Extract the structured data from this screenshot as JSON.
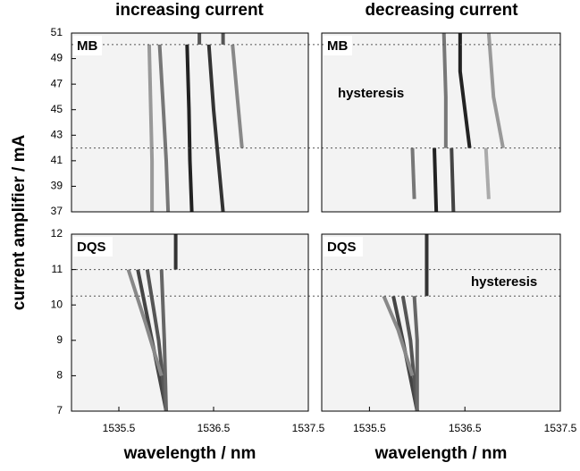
{
  "column_titles": [
    "increasing current",
    "decreasing current"
  ],
  "y_label": "current amplifier / mA",
  "chart_data": [
    {
      "type": "line",
      "label": "MB",
      "ylim": [
        37,
        51
      ],
      "yticks": [
        37,
        39,
        41,
        43,
        45,
        47,
        49,
        51
      ],
      "xlim": [
        1535.0,
        1537.5
      ],
      "hlines": [
        50.1,
        42.0
      ],
      "series": [
        {
          "color": "#222222",
          "x": [
            1536.27,
            1536.25,
            1536.24,
            1536.22
          ],
          "values": [
            37,
            41,
            45,
            50.1
          ]
        },
        {
          "color": "#333333",
          "x": [
            1536.6,
            1536.55,
            1536.5,
            1536.45
          ],
          "values": [
            37,
            41,
            45,
            50.1
          ]
        },
        {
          "color": "#777777",
          "x": [
            1536.02,
            1536.0,
            1535.97,
            1535.93
          ],
          "values": [
            37,
            41,
            45,
            50.1
          ]
        },
        {
          "color": "#999999",
          "x": [
            1535.85,
            1535.85,
            1535.82
          ],
          "values": [
            37,
            41,
            50.1
          ]
        },
        {
          "color": "#888888",
          "x": [
            1536.8,
            1536.75,
            1536.7
          ],
          "values": [
            42,
            46,
            50.1
          ]
        },
        {
          "color": "#555555",
          "x": [
            1536.35,
            1536.35
          ],
          "values": [
            50.1,
            51
          ]
        },
        {
          "color": "#555555",
          "x": [
            1536.6,
            1536.6
          ],
          "values": [
            50.1,
            51
          ]
        }
      ]
    },
    {
      "type": "line",
      "label": "MB",
      "annotation": "hysteresis",
      "ylim": [
        37,
        51
      ],
      "xlim": [
        1535.0,
        1537.5
      ],
      "hlines": [
        50.1,
        42.0
      ],
      "series": [
        {
          "color": "#222222",
          "x": [
            1536.55,
            1536.5,
            1536.45,
            1536.45
          ],
          "values": [
            42,
            45,
            48,
            51
          ]
        },
        {
          "color": "#777777",
          "x": [
            1536.3,
            1536.3,
            1536.28
          ],
          "values": [
            42,
            46,
            51
          ]
        },
        {
          "color": "#999999",
          "x": [
            1536.9,
            1536.8,
            1536.75
          ],
          "values": [
            42,
            46,
            51
          ]
        },
        {
          "color": "#222222",
          "x": [
            1536.2,
            1536.18
          ],
          "values": [
            37,
            42
          ]
        },
        {
          "color": "#444444",
          "x": [
            1536.38,
            1536.36
          ],
          "values": [
            37,
            42
          ]
        },
        {
          "color": "#777777",
          "x": [
            1535.97,
            1535.95
          ],
          "values": [
            38,
            42
          ]
        },
        {
          "color": "#aaaaaa",
          "x": [
            1536.75,
            1536.72
          ],
          "values": [
            38,
            42
          ]
        }
      ]
    },
    {
      "type": "line",
      "label": "DQS",
      "ylim": [
        7,
        12
      ],
      "yticks": [
        7,
        8,
        9,
        10,
        11,
        12
      ],
      "xlim": [
        1535.0,
        1537.5
      ],
      "xticks": [
        1535.5,
        1536.5,
        1537.5
      ],
      "xlabel": "wavelength / nm",
      "hlines": [
        11.0,
        10.25
      ],
      "series": [
        {
          "color": "#333333",
          "x": [
            1536.1,
            1536.1
          ],
          "values": [
            11,
            12
          ]
        },
        {
          "color": "#444444",
          "x": [
            1536.0,
            1535.85,
            1535.7
          ],
          "values": [
            7,
            9,
            11
          ]
        },
        {
          "color": "#555555",
          "x": [
            1536.0,
            1535.92,
            1535.8
          ],
          "values": [
            7,
            9,
            11
          ]
        },
        {
          "color": "#666666",
          "x": [
            1536.0,
            1535.98,
            1535.95
          ],
          "values": [
            7,
            9,
            11
          ]
        },
        {
          "color": "#888888",
          "x": [
            1535.95,
            1535.78,
            1535.6
          ],
          "values": [
            8,
            9.5,
            11
          ]
        }
      ]
    },
    {
      "type": "line",
      "label": "DQS",
      "annotation": "hysteresis",
      "ylim": [
        7,
        12
      ],
      "xlim": [
        1535.0,
        1537.5
      ],
      "xticks": [
        1535.5,
        1536.5,
        1537.5
      ],
      "xlabel": "wavelength / nm",
      "hlines": [
        11.0,
        10.25
      ],
      "series": [
        {
          "color": "#333333",
          "x": [
            1536.1,
            1536.1
          ],
          "values": [
            10.25,
            12
          ]
        },
        {
          "color": "#444444",
          "x": [
            1536.0,
            1535.85,
            1535.75
          ],
          "values": [
            7,
            9,
            10.25
          ]
        },
        {
          "color": "#555555",
          "x": [
            1536.0,
            1535.93,
            1535.85
          ],
          "values": [
            7,
            9,
            10.25
          ]
        },
        {
          "color": "#666666",
          "x": [
            1536.0,
            1536.0,
            1535.97
          ],
          "values": [
            7,
            9,
            10.25
          ]
        },
        {
          "color": "#888888",
          "x": [
            1535.95,
            1535.8,
            1535.65
          ],
          "values": [
            8,
            9.3,
            10.25
          ]
        }
      ]
    }
  ]
}
